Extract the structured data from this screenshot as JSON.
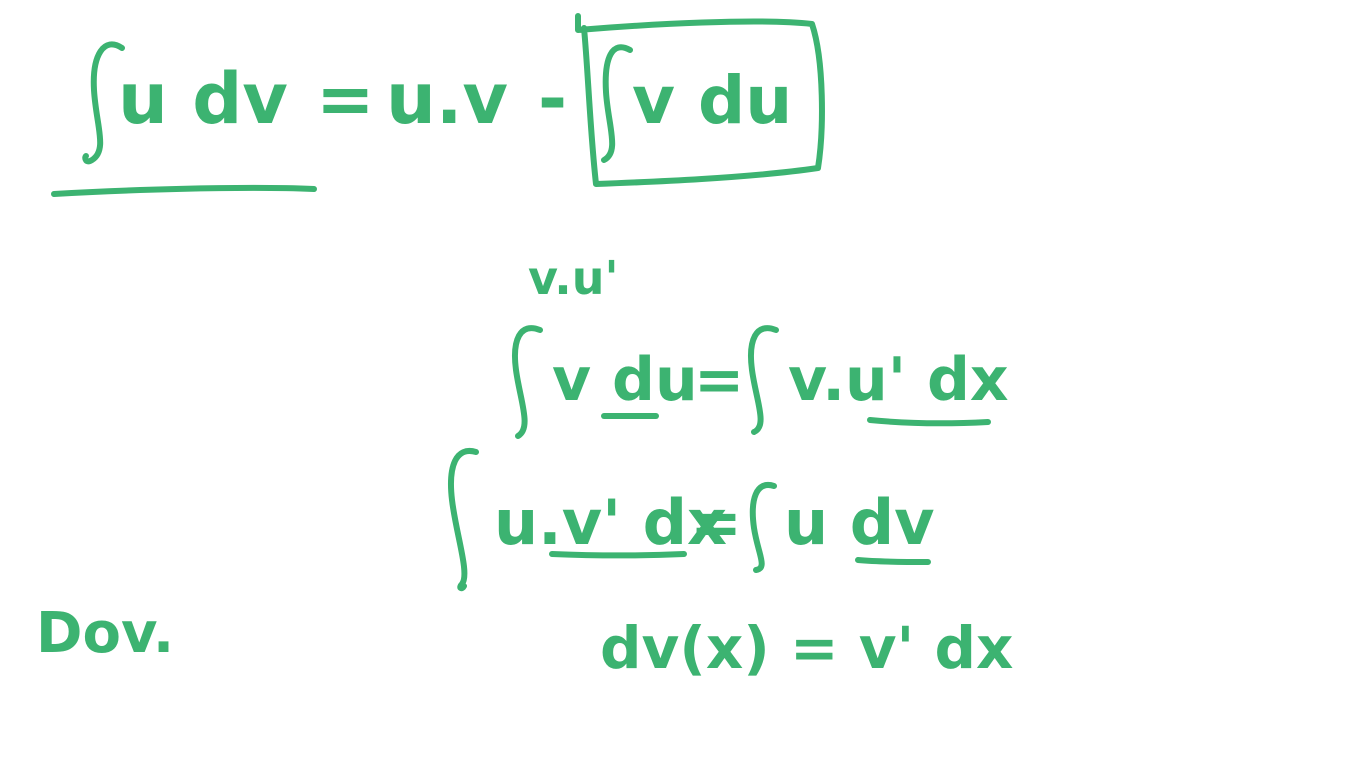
{
  "ink_color": "#3cb371",
  "lines": {
    "integration_by_parts": {
      "lhs_integrand": "u dv",
      "equals": "=",
      "product": "u.v",
      "minus": "-",
      "boxed_integrand": "v du"
    },
    "annotation": "v.u'",
    "substitution_1": {
      "lhs_integrand": "v du",
      "equals": "=",
      "rhs_integrand": "v.u' dx"
    },
    "substitution_2": {
      "lhs_integrand": "u.v' dx",
      "equals": "=",
      "rhs_integrand": "u dv"
    },
    "differential": "dv(x) = v' dx",
    "proof_label": "Dov."
  }
}
